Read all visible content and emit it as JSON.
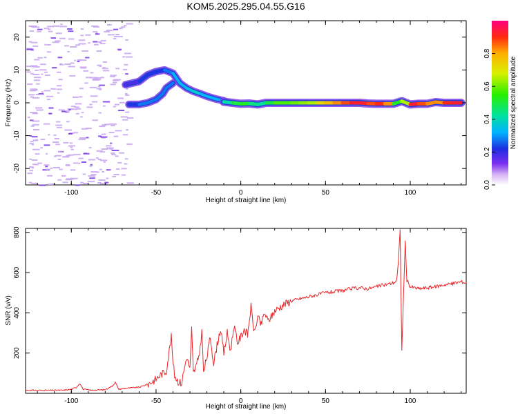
{
  "title": "KOM5.2025.295.04.55.G16",
  "colors": {
    "frame": "#000000",
    "snr_line": "#e8262a",
    "ridge_strong": "#e8262a",
    "ridge_mid": "#18c8b4",
    "ridge_low": "#2b3ddb",
    "speckle": "#c9a8f0",
    "speckle_dark": "#7c3fe6",
    "background": "#ffffff"
  },
  "chart_data": [
    {
      "type": "heatmap",
      "name": "spectrogram",
      "xlabel": "Height of straight line (km)",
      "ylabel": "Frequency (Hz)",
      "xlim": [
        -127,
        133
      ],
      "ylim": [
        -25,
        25
      ],
      "x_ticks": [
        -100,
        -50,
        0,
        50,
        100
      ],
      "y_ticks": [
        -20,
        -10,
        0,
        10,
        20
      ],
      "x_tick_labels": [
        "-100",
        "-50",
        "0",
        "50",
        "100"
      ],
      "y_tick_labels": [
        "-20",
        "-10",
        "0",
        "10",
        "20"
      ],
      "colorbar": {
        "label": "Normalized spectral amplitude",
        "range": [
          0,
          1
        ],
        "ticks": [
          0.0,
          0.2,
          0.4,
          0.6,
          0.8
        ],
        "tick_labels": [
          "0.0",
          "0.2",
          "0.4",
          "0.6",
          "0.8"
        ]
      },
      "ridge_upper": [
        {
          "x": -68,
          "f": 5.5,
          "a": 0.15
        },
        {
          "x": -60,
          "f": 6.5,
          "a": 0.2
        },
        {
          "x": -55,
          "f": 8.5,
          "a": 0.25
        },
        {
          "x": -50,
          "f": 9.5,
          "a": 0.2
        },
        {
          "x": -45,
          "f": 10.0,
          "a": 0.25
        },
        {
          "x": -40,
          "f": 9.0,
          "a": 0.3
        },
        {
          "x": -36,
          "f": 6.0,
          "a": 0.35
        },
        {
          "x": -32,
          "f": 4.5,
          "a": 0.3
        },
        {
          "x": -28,
          "f": 3.5,
          "a": 0.4
        },
        {
          "x": -24,
          "f": 2.8,
          "a": 0.35
        },
        {
          "x": -20,
          "f": 2.0,
          "a": 0.3
        },
        {
          "x": -15,
          "f": 1.2,
          "a": 0.35
        },
        {
          "x": -10,
          "f": 0.6,
          "a": 0.3
        }
      ],
      "ridge_lower": [
        {
          "x": -66,
          "f": -0.5,
          "a": 0.2
        },
        {
          "x": -60,
          "f": -0.5,
          "a": 0.25
        },
        {
          "x": -55,
          "f": 0.0,
          "a": 0.3
        },
        {
          "x": -50,
          "f": 1.0,
          "a": 0.25
        },
        {
          "x": -46,
          "f": 2.8,
          "a": 0.3
        },
        {
          "x": -44,
          "f": 4.5,
          "a": 0.25
        },
        {
          "x": -40,
          "f": 6.0,
          "a": 0.3
        }
      ],
      "ridge_main": [
        {
          "x": -10,
          "f": 0.3,
          "a": 0.35
        },
        {
          "x": -5,
          "f": 0.0,
          "a": 0.45
        },
        {
          "x": 0,
          "f": -0.3,
          "a": 0.55
        },
        {
          "x": 5,
          "f": -0.2,
          "a": 0.5
        },
        {
          "x": 10,
          "f": -0.5,
          "a": 0.4
        },
        {
          "x": 15,
          "f": 0.0,
          "a": 0.45
        },
        {
          "x": 20,
          "f": 0.0,
          "a": 0.55
        },
        {
          "x": 25,
          "f": 0.0,
          "a": 0.6
        },
        {
          "x": 30,
          "f": 0.0,
          "a": 0.55
        },
        {
          "x": 35,
          "f": 0.0,
          "a": 0.65
        },
        {
          "x": 40,
          "f": 0.0,
          "a": 0.6
        },
        {
          "x": 45,
          "f": 0.0,
          "a": 0.7
        },
        {
          "x": 50,
          "f": 0.0,
          "a": 0.75
        },
        {
          "x": 55,
          "f": 0.0,
          "a": 0.8
        },
        {
          "x": 60,
          "f": 0.0,
          "a": 0.85
        },
        {
          "x": 65,
          "f": 0.0,
          "a": 0.9
        },
        {
          "x": 70,
          "f": 0.0,
          "a": 0.95
        },
        {
          "x": 75,
          "f": -0.2,
          "a": 0.9
        },
        {
          "x": 80,
          "f": -0.3,
          "a": 0.85
        },
        {
          "x": 85,
          "f": -0.3,
          "a": 0.95
        },
        {
          "x": 90,
          "f": -0.3,
          "a": 0.7
        },
        {
          "x": 95,
          "f": 0.5,
          "a": 0.35
        },
        {
          "x": 100,
          "f": -0.5,
          "a": 0.95
        },
        {
          "x": 105,
          "f": -0.3,
          "a": 0.9
        },
        {
          "x": 110,
          "f": -0.3,
          "a": 0.85
        },
        {
          "x": 115,
          "f": 0.2,
          "a": 0.8
        },
        {
          "x": 120,
          "f": 0.0,
          "a": 0.85
        },
        {
          "x": 125,
          "f": 0.0,
          "a": 0.95
        },
        {
          "x": 130,
          "f": 0.0,
          "a": 0.9
        }
      ],
      "speckle_region": {
        "x_range": [
          -127,
          -67
        ],
        "f_range": [
          -25,
          25
        ]
      }
    },
    {
      "type": "line",
      "name": "snr",
      "xlabel": "Height of straight line (km)",
      "ylabel": "SNR (v/v)",
      "xlim": [
        -127,
        133
      ],
      "ylim": [
        0,
        820
      ],
      "x_ticks": [
        -100,
        -50,
        0,
        50,
        100
      ],
      "y_ticks": [
        200,
        400,
        600,
        800
      ],
      "x_tick_labels": [
        "-100",
        "-50",
        "0",
        "50",
        "100"
      ],
      "y_tick_labels": [
        "200",
        "400",
        "600",
        "800"
      ],
      "series": [
        {
          "name": "SNR",
          "x": [
            -127,
            -115,
            -105,
            -100,
            -97,
            -95,
            -93,
            -88,
            -80,
            -76,
            -74,
            -72,
            -68,
            -60,
            -55,
            -50,
            -47,
            -44,
            -41,
            -40,
            -39,
            -37,
            -35,
            -32,
            -30,
            -29,
            -28,
            -26,
            -24,
            -23,
            -22,
            -20,
            -18,
            -16,
            -14,
            -12,
            -10,
            -8,
            -6,
            -4,
            -2,
            0,
            2,
            4,
            6,
            8,
            10,
            12,
            14,
            16,
            18,
            20,
            25,
            30,
            35,
            40,
            45,
            50,
            55,
            60,
            65,
            70,
            75,
            80,
            85,
            88,
            90,
            92,
            93,
            94,
            95,
            96,
            97,
            98,
            100,
            105,
            110,
            115,
            120,
            125,
            130,
            133
          ],
          "y": [
            15,
            15,
            15,
            20,
            30,
            50,
            20,
            15,
            18,
            35,
            55,
            20,
            25,
            30,
            45,
            70,
            95,
            110,
            280,
            150,
            90,
            60,
            50,
            180,
            120,
            320,
            100,
            140,
            220,
            320,
            100,
            180,
            280,
            150,
            240,
            320,
            200,
            300,
            210,
            340,
            250,
            280,
            320,
            290,
            430,
            300,
            380,
            340,
            400,
            360,
            380,
            410,
            440,
            460,
            470,
            480,
            490,
            500,
            505,
            510,
            520,
            525,
            520,
            530,
            540,
            545,
            550,
            560,
            650,
            820,
            210,
            480,
            750,
            560,
            530,
            520,
            525,
            530,
            540,
            545,
            555,
            550
          ]
        }
      ]
    }
  ]
}
